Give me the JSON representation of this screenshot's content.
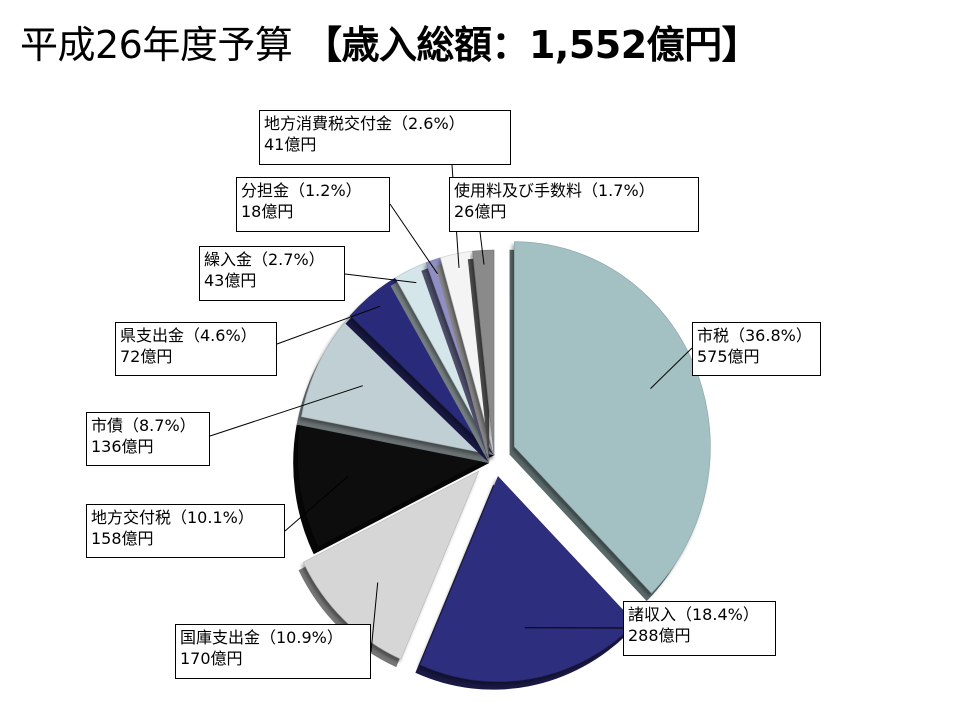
{
  "page": {
    "title_main": "平成26年度予算 ",
    "title_bracket": "【歳入総額：1,552億円】"
  },
  "chart_data": {
    "type": "pie",
    "title": "平成26年度予算 【歳入総額：1,552億円】",
    "total": "1,552億円",
    "slices": [
      {
        "name": "市税",
        "percent": 36.8,
        "amount": 575,
        "label": "市税（36.8%）",
        "value_label": "575億円",
        "color": "#a3c0c3",
        "exploded": true
      },
      {
        "name": "諸収入",
        "percent": 18.4,
        "amount": 288,
        "label": "諸収入（18.4%）",
        "value_label": "288億円",
        "color": "#2e2e7e",
        "exploded": true
      },
      {
        "name": "国庫支出金",
        "percent": 10.9,
        "amount": 170,
        "label": "国庫支出金（10.9%）",
        "value_label": "170億円",
        "color": "#d6d6d6",
        "exploded": true
      },
      {
        "name": "地方交付税",
        "percent": 10.1,
        "amount": 158,
        "label": "地方交付税（10.1%）",
        "value_label": "158億円",
        "color": "#0d0d0d",
        "exploded": false
      },
      {
        "name": "市債",
        "percent": 8.7,
        "amount": 136,
        "label": "市債（8.7%）",
        "value_label": "136億円",
        "color": "#c0cfd3",
        "exploded": false
      },
      {
        "name": "県支出金",
        "percent": 4.6,
        "amount": 72,
        "label": "県支出金（4.6%）",
        "value_label": "72億円",
        "color": "#2c2c7a",
        "exploded": false
      },
      {
        "name": "繰入金",
        "percent": 2.7,
        "amount": 43,
        "label": "繰入金（2.7%）",
        "value_label": "43億円",
        "color": "#d4e6ea",
        "exploded": false
      },
      {
        "name": "分担金",
        "percent": 1.2,
        "amount": 18,
        "label": "分担金（1.2%）",
        "value_label": "18億円",
        "color": "#8f8fc4",
        "exploded": false
      },
      {
        "name": "地方消費税交付金",
        "percent": 2.6,
        "amount": 41,
        "label": "地方消費税交付金（2.6%）",
        "value_label": "41億円",
        "color": "#f4f4f4",
        "exploded": false
      },
      {
        "name": "使用料及び手数料",
        "percent": 1.7,
        "amount": 26,
        "label": "使用料及び手数料（1.7%）",
        "value_label": "26億円",
        "color": "#8a8a8a",
        "exploded": false
      }
    ]
  }
}
